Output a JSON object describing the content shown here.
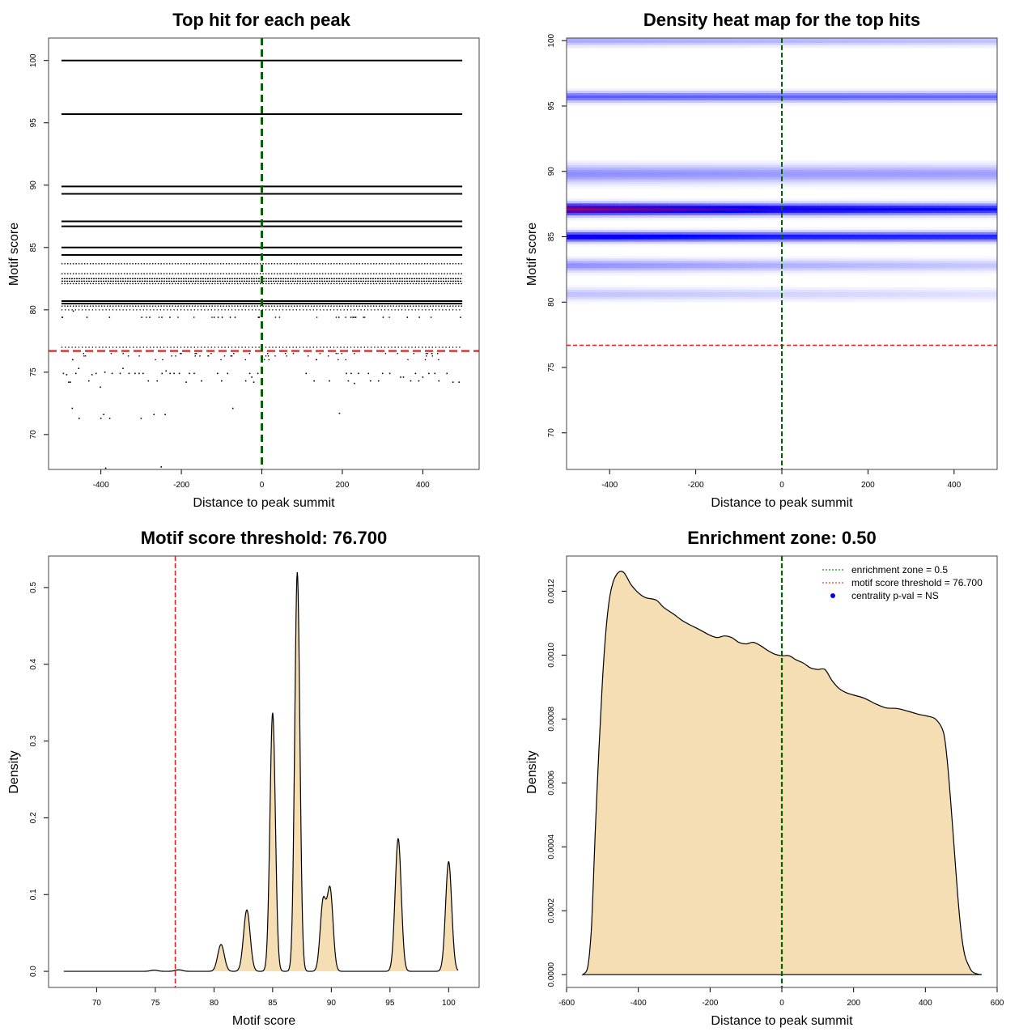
{
  "chart_data": [
    {
      "id": "p1",
      "type": "scatter",
      "title": "Top hit for each peak",
      "xlabel": "Distance to peak summit",
      "ylabel": "Motif score",
      "xlim": [
        -530,
        540
      ],
      "ylim": [
        67.2,
        101.8
      ],
      "xticks": [
        -400,
        -200,
        0,
        200,
        400
      ],
      "xtick_labels": [
        "-400",
        "-200",
        "0",
        "200",
        "400"
      ],
      "yticks": [
        70,
        75,
        80,
        85,
        90,
        95,
        100
      ],
      "ytick_labels": [
        "70",
        "75",
        "80",
        "85",
        "90",
        "95",
        "100"
      ],
      "threshold_y": 76.7,
      "center_x": 0,
      "dense_rows": [
        {
          "y": 100.0,
          "density": 1.0
        },
        {
          "y": 95.7,
          "density": 1.0
        },
        {
          "y": 89.9,
          "density": 1.0
        },
        {
          "y": 89.3,
          "density": 1.0
        },
        {
          "y": 87.1,
          "density": 1.0
        },
        {
          "y": 86.7,
          "density": 1.0
        },
        {
          "y": 85.0,
          "density": 1.0
        },
        {
          "y": 84.4,
          "density": 1.0
        },
        {
          "y": 83.7,
          "density": 0.6
        },
        {
          "y": 82.9,
          "density": 0.7
        },
        {
          "y": 82.5,
          "density": 0.9
        },
        {
          "y": 82.3,
          "density": 0.9
        },
        {
          "y": 82.1,
          "density": 0.7
        },
        {
          "y": 80.7,
          "density": 1.0
        },
        {
          "y": 80.5,
          "density": 1.0
        },
        {
          "y": 80.3,
          "density": 0.8
        },
        {
          "y": 80.0,
          "density": 0.5
        },
        {
          "y": 79.4,
          "density": 0.06
        },
        {
          "y": 77.0,
          "density": 0.45
        },
        {
          "y": 76.5,
          "density": 0.1
        },
        {
          "y": 76.3,
          "density": 0.08
        },
        {
          "y": 76.0,
          "density": 0.05
        }
      ],
      "sparse_points": [
        [
          -493,
          74.9
        ],
        [
          -485,
          74.8
        ],
        [
          -480,
          74.2
        ],
        [
          -476,
          74.2
        ],
        [
          -470,
          76.0
        ],
        [
          -462,
          74.9
        ],
        [
          -455,
          75.3
        ],
        [
          -430,
          74.3
        ],
        [
          -422,
          74.8
        ],
        [
          -412,
          74.9
        ],
        [
          -401,
          73.8
        ],
        [
          -390,
          75.0
        ],
        [
          -372,
          74.9
        ],
        [
          -352,
          74.9
        ],
        [
          -345,
          75.3
        ],
        [
          -330,
          74.9
        ],
        [
          -315,
          74.9
        ],
        [
          -305,
          74.9
        ],
        [
          -295,
          74.9
        ],
        [
          -282,
          74.3
        ],
        [
          -260,
          74.3
        ],
        [
          -248,
          74.9
        ],
        [
          -238,
          75.1
        ],
        [
          -228,
          74.9
        ],
        [
          -218,
          74.9
        ],
        [
          -205,
          74.9
        ],
        [
          -188,
          74.2
        ],
        [
          -180,
          74.9
        ],
        [
          -168,
          74.9
        ],
        [
          -150,
          74.3
        ],
        [
          -110,
          74.9
        ],
        [
          -100,
          74.3
        ],
        [
          -85,
          74.9
        ],
        [
          -40,
          74.3
        ],
        [
          -30,
          74.9
        ],
        [
          -25,
          74.6
        ],
        [
          -20,
          74.2
        ],
        [
          -10,
          74.9
        ],
        [
          110,
          74.9
        ],
        [
          130,
          74.3
        ],
        [
          168,
          74.3
        ],
        [
          210,
          74.9
        ],
        [
          215,
          74.3
        ],
        [
          222,
          74.9
        ],
        [
          240,
          74.9
        ],
        [
          265,
          74.9
        ],
        [
          270,
          74.3
        ],
        [
          300,
          74.9
        ],
        [
          318,
          74.9
        ],
        [
          345,
          74.6
        ],
        [
          352,
          74.6
        ],
        [
          370,
          74.3
        ],
        [
          382,
          74.9
        ],
        [
          390,
          74.3
        ],
        [
          400,
          74.6
        ],
        [
          415,
          74.9
        ],
        [
          430,
          74.9
        ],
        [
          460,
          74.9
        ],
        [
          475,
          74.2
        ],
        [
          490,
          74.2
        ],
        [
          440,
          74.3
        ],
        [
          230,
          74.1
        ],
        [
          290,
          74.3
        ],
        [
          -471,
          72.1
        ],
        [
          -454,
          71.3
        ],
        [
          -400,
          71.3
        ],
        [
          -393,
          71.6
        ],
        [
          -378,
          71.3
        ],
        [
          -300,
          71.3
        ],
        [
          -268,
          71.6
        ],
        [
          -240,
          71.6
        ],
        [
          -72,
          72.1
        ],
        [
          193,
          71.7
        ],
        [
          -388,
          67.3
        ],
        [
          -250,
          67.4
        ]
      ],
      "dense_row_ticks": [
        [
          -497,
          79.4
        ],
        [
          -470,
          79.9
        ],
        [
          -436,
          79.4
        ],
        [
          -380,
          79.4
        ],
        [
          -300,
          79.4
        ],
        [
          -280,
          79.4
        ],
        [
          -250,
          79.4
        ],
        [
          -230,
          79.4
        ],
        [
          -120,
          79.4
        ],
        [
          -110,
          79.4
        ],
        [
          -100,
          79.4
        ],
        [
          -80,
          79.4
        ],
        [
          -68,
          79.4
        ],
        [
          -10,
          79.4
        ],
        [
          -8,
          79.4
        ],
        [
          190,
          79.4
        ],
        [
          220,
          79.4
        ],
        [
          225,
          79.4
        ],
        [
          232,
          79.4
        ],
        [
          300,
          79.4
        ],
        [
          360,
          79.4
        ],
        [
          390,
          79.4
        ],
        [
          492,
          79.4
        ]
      ]
    },
    {
      "id": "p2",
      "type": "heatmap",
      "title": "Density heat map for the top hits",
      "xlabel": "Distance to peak summit",
      "ylabel": "Motif score",
      "xlim": [
        -500,
        500
      ],
      "ylim": [
        67.2,
        100.2
      ],
      "xticks": [
        -400,
        -200,
        0,
        200,
        400
      ],
      "xtick_labels": [
        "-400",
        "-200",
        "0",
        "200",
        "400"
      ],
      "yticks": [
        70,
        75,
        80,
        85,
        90,
        95,
        100
      ],
      "ytick_labels": [
        "70",
        "75",
        "80",
        "85",
        "90",
        "95",
        "100"
      ],
      "threshold_y": 76.7,
      "center_x": 0,
      "bands": [
        {
          "y": 100.0,
          "sd": 0.25,
          "intensity": [
            0.35,
            0.3,
            0.25
          ]
        },
        {
          "y": 95.7,
          "sd": 0.25,
          "intensity": [
            0.65,
            0.62,
            0.6
          ]
        },
        {
          "y": 89.8,
          "sd": 0.45,
          "intensity": [
            0.45,
            0.4,
            0.38
          ]
        },
        {
          "y": 87.1,
          "sd": 0.28,
          "intensity": [
            1.65,
            1.15,
            0.95
          ]
        },
        {
          "y": 85.0,
          "sd": 0.24,
          "intensity": [
            1.15,
            0.95,
            0.9
          ]
        },
        {
          "y": 82.8,
          "sd": 0.3,
          "intensity": [
            0.45,
            0.32,
            0.22
          ]
        },
        {
          "y": 80.6,
          "sd": 0.3,
          "intensity": [
            0.25,
            0.18,
            0.12
          ]
        }
      ]
    },
    {
      "id": "p3",
      "type": "area",
      "title": "Motif score threshold: 76.700",
      "xlabel": "Motif score",
      "ylabel": "Density",
      "xlim": [
        65.9,
        102.6
      ],
      "ylim": [
        -0.021,
        0.541
      ],
      "xticks": [
        70,
        75,
        80,
        85,
        90,
        95,
        100
      ],
      "xtick_labels": [
        "70",
        "75",
        "80",
        "85",
        "90",
        "95",
        "100"
      ],
      "yticks": [
        0.0,
        0.1,
        0.2,
        0.3,
        0.4,
        0.5
      ],
      "ytick_labels": [
        "0.0",
        "0.1",
        "0.2",
        "0.3",
        "0.4",
        "0.5"
      ],
      "threshold_x": 76.7,
      "x_range": [
        67.2,
        100.8
      ],
      "peaks": [
        {
          "mu": 74.9,
          "sd": 0.3,
          "height": 0.0015
        },
        {
          "mu": 77.0,
          "sd": 0.3,
          "height": 0.002
        },
        {
          "mu": 80.6,
          "sd": 0.28,
          "height": 0.035
        },
        {
          "mu": 82.8,
          "sd": 0.28,
          "height": 0.08
        },
        {
          "mu": 85.0,
          "sd": 0.23,
          "height": 0.337
        },
        {
          "mu": 87.1,
          "sd": 0.22,
          "height": 0.52
        },
        {
          "mu": 89.3,
          "sd": 0.25,
          "height": 0.09
        },
        {
          "mu": 89.9,
          "sd": 0.25,
          "height": 0.105
        },
        {
          "mu": 95.7,
          "sd": 0.26,
          "height": 0.173
        },
        {
          "mu": 100.0,
          "sd": 0.26,
          "height": 0.143
        }
      ]
    },
    {
      "id": "p4",
      "type": "area",
      "title": "Enrichment zone: 0.50",
      "xlabel": "Distance to peak summit",
      "ylabel": "Density",
      "xlim": [
        -600,
        600
      ],
      "ylim": [
        -4e-05,
        0.00131
      ],
      "xticks": [
        -600,
        -400,
        -200,
        0,
        200,
        400,
        600
      ],
      "xtick_labels": [
        "-600",
        "-400",
        "-200",
        "0",
        "200",
        "400",
        "600"
      ],
      "yticks": [
        0.0,
        0.0002,
        0.0004,
        0.0006,
        0.0008,
        0.001,
        0.0012
      ],
      "ytick_labels": [
        "0.0000",
        "0.0002",
        "0.0004",
        "0.0006",
        "0.0008",
        "0.0010",
        "0.0012"
      ],
      "center_x": 0,
      "curve": [
        [
          -555,
          0.0
        ],
        [
          -545,
          1e-05
        ],
        [
          -540,
          3e-05
        ],
        [
          -535,
          8e-05
        ],
        [
          -530,
          0.00016
        ],
        [
          -525,
          0.0003
        ],
        [
          -520,
          0.00045
        ],
        [
          -510,
          0.0007
        ],
        [
          -500,
          0.00092
        ],
        [
          -490,
          0.00108
        ],
        [
          -480,
          0.00118
        ],
        [
          -470,
          0.00123
        ],
        [
          -460,
          0.001253
        ],
        [
          -450,
          0.001262
        ],
        [
          -440,
          0.001258
        ],
        [
          -430,
          0.00124
        ],
        [
          -420,
          0.00122
        ],
        [
          -400,
          0.001195
        ],
        [
          -380,
          0.00118
        ],
        [
          -350,
          0.001172
        ],
        [
          -330,
          0.00115
        ],
        [
          -300,
          0.001127
        ],
        [
          -280,
          0.00111
        ],
        [
          -260,
          0.001097
        ],
        [
          -230,
          0.00108
        ],
        [
          -200,
          0.001062
        ],
        [
          -180,
          0.001055
        ],
        [
          -160,
          0.00106
        ],
        [
          -140,
          0.001055
        ],
        [
          -120,
          0.00104
        ],
        [
          -100,
          0.001035
        ],
        [
          -80,
          0.00104
        ],
        [
          -60,
          0.00103
        ],
        [
          -40,
          0.001015
        ],
        [
          -20,
          0.001003
        ],
        [
          0,
          0.000998
        ],
        [
          20,
          0.000998
        ],
        [
          40,
          0.000985
        ],
        [
          60,
          0.000975
        ],
        [
          80,
          0.00096
        ],
        [
          100,
          0.000955
        ],
        [
          120,
          0.000955
        ],
        [
          140,
          0.00092
        ],
        [
          160,
          0.000895
        ],
        [
          180,
          0.000882
        ],
        [
          200,
          0.000875
        ],
        [
          230,
          0.000865
        ],
        [
          260,
          0.000848
        ],
        [
          290,
          0.000835
        ],
        [
          320,
          0.000833
        ],
        [
          350,
          0.000825
        ],
        [
          380,
          0.000815
        ],
        [
          410,
          0.000808
        ],
        [
          430,
          0.000798
        ],
        [
          450,
          0.00076
        ],
        [
          460,
          0.00068
        ],
        [
          470,
          0.00055
        ],
        [
          480,
          0.0004
        ],
        [
          490,
          0.00025
        ],
        [
          500,
          0.00013
        ],
        [
          510,
          6e-05
        ],
        [
          520,
          3e-05
        ],
        [
          530,
          1e-05
        ],
        [
          545,
          2e-06
        ],
        [
          557,
          0.0
        ]
      ],
      "legend": [
        {
          "label": "enrichment zone = 0.5",
          "style": "dotted",
          "color": "#1a8a1a"
        },
        {
          "label": "motif score threshold = 76.700",
          "style": "dotted",
          "color": "#e04040"
        },
        {
          "label": "centrality p-val = NS",
          "style": "point",
          "color": "#0000ee"
        }
      ]
    }
  ],
  "colors": {
    "fill": "#f5deb3",
    "threshold": "#dd2222",
    "center": "#006400",
    "heat_low": "#ffffff",
    "heat_mid": "#0000ff",
    "heat_high": "#ff0000"
  }
}
